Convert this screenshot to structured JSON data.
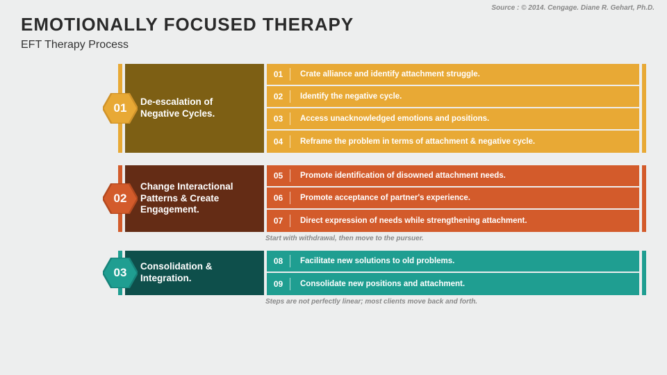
{
  "source": "Source : © 2014. Cengage. Diane R. Gehart, Ph.D.",
  "title": "EMOTIONALLY FOCUSED THERAPY",
  "subtitle": "EFT Therapy Process",
  "background_color": "#edeeee",
  "stages": [
    {
      "num": "01",
      "label": "De-escalation of Negative Cycles.",
      "left_bg": "#7d5f14",
      "step_bg": "#e8a935",
      "hex_fill": "#e8a935",
      "hex_stroke": "#d0932a",
      "steps": [
        {
          "n": "01",
          "t": "Crate alliance and identify attachment struggle."
        },
        {
          "n": "02",
          "t": "Identify the negative cycle."
        },
        {
          "n": "03",
          "t": "Access unacknowledged emotions and positions."
        },
        {
          "n": "04",
          "t": "Reframe the problem in terms of attachment & negative cycle."
        }
      ],
      "note": ""
    },
    {
      "num": "02",
      "label": "Change Interactional Patterns & Create Engagement.",
      "left_bg": "#642c15",
      "step_bg": "#d35b2b",
      "hex_fill": "#d35b2b",
      "hex_stroke": "#b44a20",
      "steps": [
        {
          "n": "05",
          "t": "Promote identification of disowned attachment needs."
        },
        {
          "n": "06",
          "t": "Promote acceptance of partner's experience."
        },
        {
          "n": "07",
          "t": "Direct expression of needs while strengthening attachment."
        }
      ],
      "note": "Start with withdrawal, then move to the pursuer."
    },
    {
      "num": "03",
      "label": "Consolidation & Integration.",
      "left_bg": "#0e4f4b",
      "step_bg": "#1f9e91",
      "hex_fill": "#1f9e91",
      "hex_stroke": "#17837a",
      "steps": [
        {
          "n": "08",
          "t": "Facilitate new solutions to old problems."
        },
        {
          "n": "09",
          "t": "Consolidate new positions and attachment."
        }
      ],
      "note": "Steps are not perfectly linear; most clients move back and forth."
    }
  ]
}
